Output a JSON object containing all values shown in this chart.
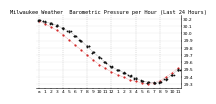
{
  "title": "Milwaukee Weather  Barometric Pressure per Hour (Last 24 Hours)",
  "background_color": "#ffffff",
  "grid_color": "#bbbbbb",
  "y_min": 29.25,
  "y_max": 30.25,
  "y_ticks": [
    29.3,
    29.4,
    29.5,
    29.6,
    29.7,
    29.8,
    29.9,
    30.0,
    30.1,
    30.2
  ],
  "y_tick_labels": [
    "29.3",
    "29.4",
    "29.5",
    "29.6",
    "29.7",
    "29.8",
    "29.9",
    "30.0",
    "30.1",
    "30.2"
  ],
  "x_grid_positions": [
    0,
    4,
    8,
    12,
    16,
    20,
    24
  ],
  "hours": [
    0,
    1,
    2,
    3,
    4,
    5,
    6,
    7,
    8,
    9,
    10,
    11,
    12,
    13,
    14,
    15,
    16,
    17,
    18,
    19,
    20,
    21,
    22,
    23
  ],
  "x_tick_labels": [
    "a",
    "1",
    "2",
    "3",
    "4",
    "5",
    "6",
    "7",
    "8",
    "9",
    "10",
    "11",
    "12",
    "1",
    "2",
    "3",
    "4",
    "5",
    "6",
    "7",
    "8",
    "9",
    "10",
    "11"
  ],
  "pressure_main": [
    30.18,
    30.16,
    30.14,
    30.11,
    30.07,
    30.03,
    29.97,
    29.9,
    29.82,
    29.74,
    29.67,
    29.6,
    29.54,
    29.5,
    29.46,
    29.42,
    29.38,
    29.35,
    29.33,
    29.32,
    29.33,
    29.37,
    29.43,
    29.5
  ],
  "pressure_red": [
    30.17,
    30.13,
    30.09,
    30.04,
    29.98,
    29.91,
    29.84,
    29.77,
    29.7,
    29.63,
    29.57,
    29.52,
    29.47,
    29.43,
    29.4,
    29.36,
    29.34,
    29.32,
    29.31,
    29.32,
    29.35,
    29.4,
    29.46,
    29.52
  ],
  "dot_color_main": "#111111",
  "dot_color_red": "#cc0000",
  "dot_size_main": 1.5,
  "dot_size_red": 1.2,
  "title_fontsize": 3.8,
  "tick_fontsize": 3.2,
  "linewidth": 0.25
}
